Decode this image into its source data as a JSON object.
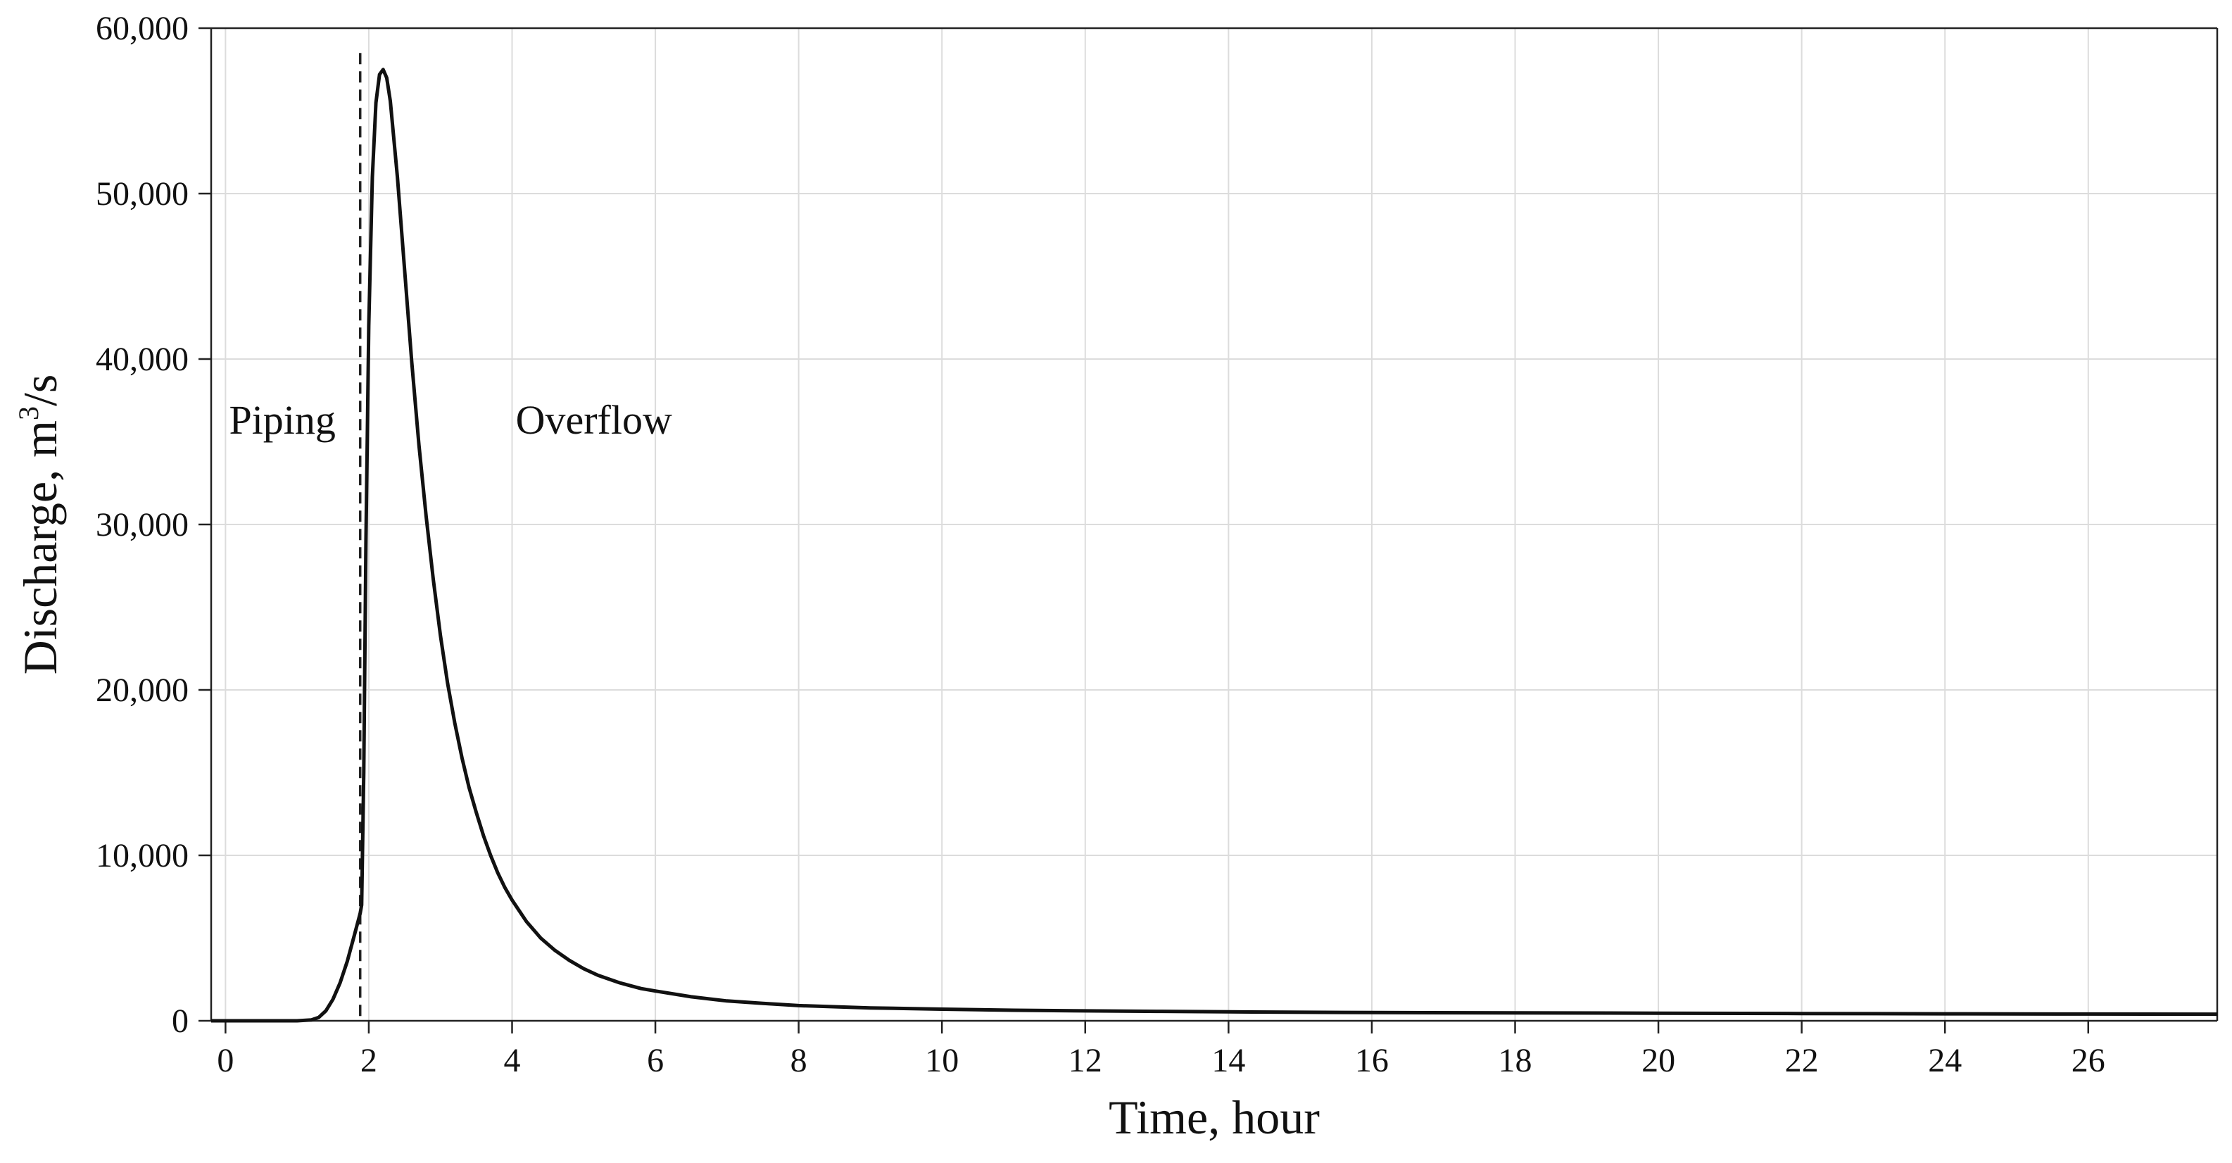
{
  "chart_data": {
    "type": "line",
    "title": "",
    "xlabel": "Time, hour",
    "ylabel_text": "Discharge, m",
    "ylabel_sup": "3",
    "ylabel_suffix": "/s",
    "xlim": [
      -0.2,
      27.8
    ],
    "ylim": [
      0,
      60000
    ],
    "x_ticks": [
      0,
      2,
      4,
      6,
      8,
      10,
      12,
      14,
      16,
      18,
      20,
      22,
      24,
      26
    ],
    "x_tick_labels": [
      "0",
      "2",
      "4",
      "6",
      "8",
      "10",
      "12",
      "14",
      "16",
      "18",
      "20",
      "22",
      "24",
      "26"
    ],
    "y_ticks": [
      0,
      10000,
      20000,
      30000,
      40000,
      50000,
      60000
    ],
    "y_tick_labels": [
      "0",
      "10,000",
      "20,000",
      "30,000",
      "40,000",
      "50,000",
      "60,000"
    ],
    "grid": true,
    "legend": "none",
    "vline_x": 1.88,
    "annotations": [
      {
        "text": "Piping",
        "x": 0.05,
        "y": 35500
      },
      {
        "text": "Overflow",
        "x": 4.05,
        "y": 35500
      }
    ],
    "series": [
      {
        "x": [
          -0.2,
          0.8,
          1.0,
          1.2,
          1.3,
          1.4,
          1.5,
          1.6,
          1.7,
          1.8,
          1.88,
          1.9,
          1.93,
          1.96,
          2.0,
          2.05,
          2.1,
          2.15,
          2.2,
          2.25,
          2.3,
          2.4,
          2.5,
          2.6,
          2.7,
          2.8,
          2.9,
          3.0,
          3.1,
          3.2,
          3.3,
          3.4,
          3.5,
          3.6,
          3.7,
          3.8,
          3.9,
          4.0,
          4.2,
          4.4,
          4.6,
          4.8,
          5.0,
          5.2,
          5.5,
          5.8,
          6.0,
          6.5,
          7.0,
          7.5,
          8.0,
          9.0,
          10.0,
          11.0,
          12.0,
          13.0,
          14.0,
          16.0,
          18.0,
          20.0,
          22.0,
          24.0,
          26.0,
          27.8
        ],
        "y": [
          0,
          0,
          0,
          50,
          200,
          600,
          1300,
          2300,
          3600,
          5200,
          6500,
          7000,
          15000,
          29000,
          42000,
          51000,
          55500,
          57200,
          57500,
          57000,
          55600,
          51000,
          45400,
          39800,
          34800,
          30500,
          26700,
          23300,
          20400,
          18000,
          15900,
          14100,
          12600,
          11200,
          10000,
          8950,
          8050,
          7300,
          6000,
          5000,
          4250,
          3650,
          3150,
          2750,
          2300,
          1950,
          1800,
          1450,
          1200,
          1050,
          920,
          780,
          700,
          640,
          600,
          570,
          540,
          500,
          480,
          460,
          440,
          420,
          410,
          400
        ]
      }
    ]
  }
}
